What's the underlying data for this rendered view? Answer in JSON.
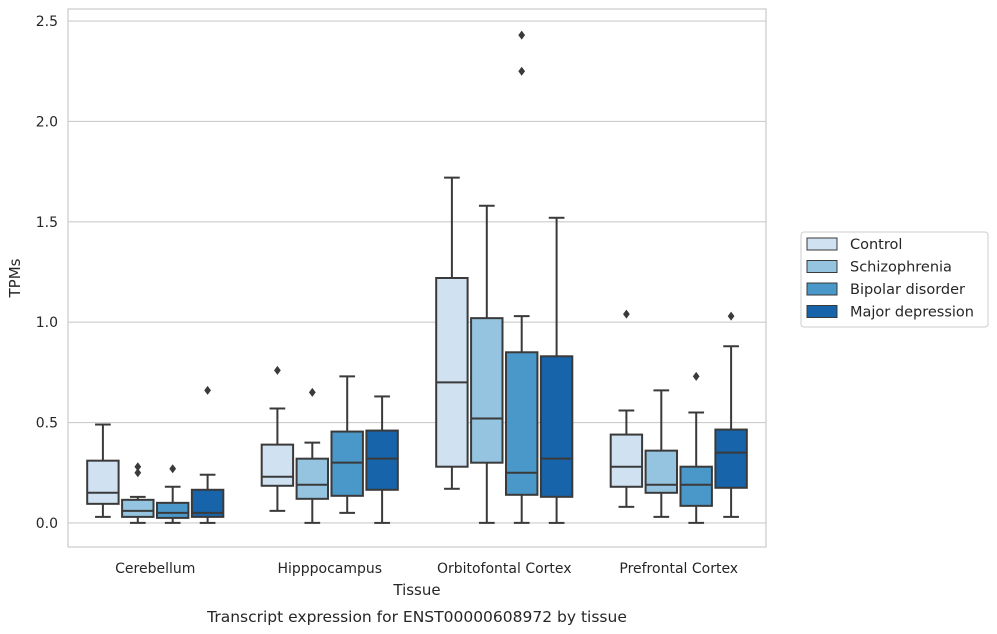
{
  "chart_data": {
    "type": "boxplot",
    "caption": "Transcript expression for ENST00000608972 by tissue",
    "xlabel": "Tissue",
    "ylabel": "TPMs",
    "ylim": [
      -0.12,
      2.56
    ],
    "yticks": [
      "0.0",
      "0.5",
      "1.0",
      "1.5",
      "2.0",
      "2.5"
    ],
    "categories": [
      "Cerebellum",
      "Hipppocampus",
      "Orbitofontal Cortex",
      "Prefrontal Cortex"
    ],
    "grid": true,
    "legend_position": "right",
    "series": [
      {
        "name": "Control",
        "color": "#d0e1f2",
        "boxes": [
          {
            "whislo": 0.03,
            "q1": 0.095,
            "med": 0.15,
            "q3": 0.31,
            "whishi": 0.49,
            "fliers": []
          },
          {
            "whislo": 0.06,
            "q1": 0.185,
            "med": 0.23,
            "q3": 0.39,
            "whishi": 0.57,
            "fliers": [
              0.76
            ]
          },
          {
            "whislo": 0.17,
            "q1": 0.28,
            "med": 0.7,
            "q3": 1.22,
            "whishi": 1.72,
            "fliers": []
          },
          {
            "whislo": 0.08,
            "q1": 0.18,
            "med": 0.28,
            "q3": 0.44,
            "whishi": 0.56,
            "fliers": [
              1.04
            ]
          }
        ]
      },
      {
        "name": "Schizophrenia",
        "color": "#94c4df",
        "boxes": [
          {
            "whislo": 0.0,
            "q1": 0.03,
            "med": 0.06,
            "q3": 0.115,
            "whishi": 0.13,
            "fliers": [
              0.25,
              0.28
            ]
          },
          {
            "whislo": 0.0,
            "q1": 0.12,
            "med": 0.19,
            "q3": 0.32,
            "whishi": 0.4,
            "fliers": [
              0.65
            ]
          },
          {
            "whislo": 0.0,
            "q1": 0.3,
            "med": 0.52,
            "q3": 1.02,
            "whishi": 1.58,
            "fliers": []
          },
          {
            "whislo": 0.03,
            "q1": 0.15,
            "med": 0.19,
            "q3": 0.36,
            "whishi": 0.66,
            "fliers": []
          }
        ]
      },
      {
        "name": "Bipolar disorder",
        "color": "#4a98c9",
        "boxes": [
          {
            "whislo": 0.0,
            "q1": 0.025,
            "med": 0.05,
            "q3": 0.1,
            "whishi": 0.18,
            "fliers": [
              0.27
            ]
          },
          {
            "whislo": 0.05,
            "q1": 0.135,
            "med": 0.3,
            "q3": 0.455,
            "whishi": 0.73,
            "fliers": []
          },
          {
            "whislo": 0.0,
            "q1": 0.14,
            "med": 0.25,
            "q3": 0.85,
            "whishi": 1.03,
            "fliers": [
              2.25,
              2.43
            ]
          },
          {
            "whislo": 0.0,
            "q1": 0.085,
            "med": 0.19,
            "q3": 0.28,
            "whishi": 0.55,
            "fliers": [
              0.73
            ]
          }
        ]
      },
      {
        "name": "Major depression",
        "color": "#1764ab",
        "boxes": [
          {
            "whislo": 0.0,
            "q1": 0.03,
            "med": 0.05,
            "q3": 0.165,
            "whishi": 0.24,
            "fliers": [
              0.66
            ]
          },
          {
            "whislo": 0.0,
            "q1": 0.165,
            "med": 0.32,
            "q3": 0.46,
            "whishi": 0.63,
            "fliers": []
          },
          {
            "whislo": 0.0,
            "q1": 0.13,
            "med": 0.32,
            "q3": 0.83,
            "whishi": 1.52,
            "fliers": []
          },
          {
            "whislo": 0.03,
            "q1": 0.175,
            "med": 0.35,
            "q3": 0.465,
            "whishi": 0.88,
            "fliers": [
              1.03
            ]
          }
        ]
      }
    ]
  }
}
